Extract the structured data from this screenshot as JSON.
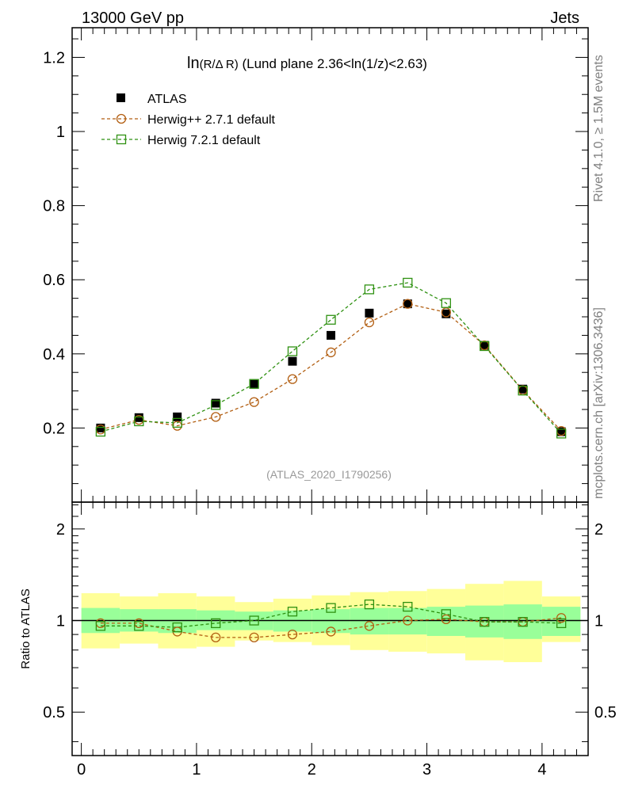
{
  "header": {
    "left": "13000 GeV pp",
    "right": "Jets"
  },
  "side_labels": {
    "rivet": "Rivet 4.1.0, ≥ 1.5M events",
    "mcplots": "mcplots.cern.ch [arXiv:1306.3436]"
  },
  "plot_title": {
    "main": "ln",
    "paren": "(R/Δ R)",
    "rest": " (Lund plane 2.36<ln(1/z)<2.63)"
  },
  "watermark": "(ATLAS_2020_I1790256)",
  "ratio_ylabel": "Ratio to ATLAS",
  "colors": {
    "herwigpp": "#b25e11",
    "herwig7": "#2e9111",
    "band_inner": "#99ff99",
    "band_outer": "#ffff99",
    "data": "#000000"
  },
  "chart_data": [
    {
      "type": "scatter",
      "panel": "main",
      "ylim": [
        0,
        1.28
      ],
      "xlim": [
        -0.08,
        4.4
      ],
      "yticks": [
        0.2,
        0.4,
        0.6,
        0.8,
        1,
        1.2
      ],
      "ytick_labels": [
        "0.2",
        "0.4",
        "0.6",
        "0.8",
        "1",
        "1.2"
      ],
      "x": [
        0.167,
        0.5,
        0.833,
        1.167,
        1.5,
        1.833,
        2.167,
        2.5,
        2.833,
        3.167,
        3.5,
        3.833,
        4.167
      ],
      "series": [
        {
          "name": "ATLAS",
          "marker": "filled-square",
          "values": [
            0.2,
            0.228,
            0.23,
            0.267,
            0.318,
            0.38,
            0.45,
            0.51,
            0.535,
            0.508,
            0.423,
            0.305,
            0.19
          ]
        },
        {
          "name": "Herwig++ 2.7.1 default",
          "marker": "open-circle",
          "values": [
            0.196,
            0.222,
            0.206,
            0.23,
            0.27,
            0.332,
            0.404,
            0.485,
            0.535,
            0.512,
            0.423,
            0.302,
            0.192
          ]
        },
        {
          "name": "Herwig 7.2.1 default",
          "marker": "open-square",
          "values": [
            0.19,
            0.218,
            0.214,
            0.262,
            0.319,
            0.407,
            0.492,
            0.574,
            0.592,
            0.537,
            0.421,
            0.301,
            0.185
          ]
        }
      ]
    },
    {
      "type": "scatter",
      "panel": "ratio",
      "ylabel": "Ratio to ATLAS",
      "ylim": [
        0.36,
        2.45
      ],
      "yscale": "log",
      "yticks": [
        0.5,
        1,
        2
      ],
      "ytick_labels": [
        "0.5",
        "1",
        "2"
      ],
      "xticks": [
        0,
        1,
        2,
        3,
        4
      ],
      "xtick_labels": [
        "0",
        "1",
        "2",
        "3",
        "4"
      ],
      "x": [
        0.167,
        0.5,
        0.833,
        1.167,
        1.5,
        1.833,
        2.167,
        2.5,
        2.833,
        3.167,
        3.5,
        3.833,
        4.167
      ],
      "series": [
        {
          "name": "Herwig++ 2.7.1 default",
          "values": [
            0.98,
            0.98,
            0.92,
            0.88,
            0.88,
            0.9,
            0.92,
            0.96,
            1.0,
            1.01,
            0.99,
            0.99,
            1.02
          ]
        },
        {
          "name": "Herwig 7.2.1 default",
          "values": [
            0.96,
            0.96,
            0.95,
            0.98,
            1.0,
            1.07,
            1.1,
            1.13,
            1.11,
            1.05,
            0.99,
            0.99,
            0.98
          ]
        }
      ],
      "band_inner": {
        "low": [
          0.91,
          0.92,
          0.91,
          0.93,
          0.93,
          0.92,
          0.91,
          0.9,
          0.9,
          0.89,
          0.88,
          0.87,
          0.89
        ],
        "high": [
          1.1,
          1.09,
          1.09,
          1.08,
          1.07,
          1.08,
          1.09,
          1.1,
          1.1,
          1.11,
          1.12,
          1.13,
          1.11
        ]
      },
      "band_outer": {
        "low": [
          0.81,
          0.84,
          0.81,
          0.82,
          0.86,
          0.85,
          0.83,
          0.8,
          0.79,
          0.78,
          0.74,
          0.73,
          0.85
        ],
        "high": [
          1.23,
          1.2,
          1.23,
          1.2,
          1.15,
          1.18,
          1.21,
          1.24,
          1.25,
          1.27,
          1.32,
          1.35,
          1.2
        ]
      }
    }
  ]
}
